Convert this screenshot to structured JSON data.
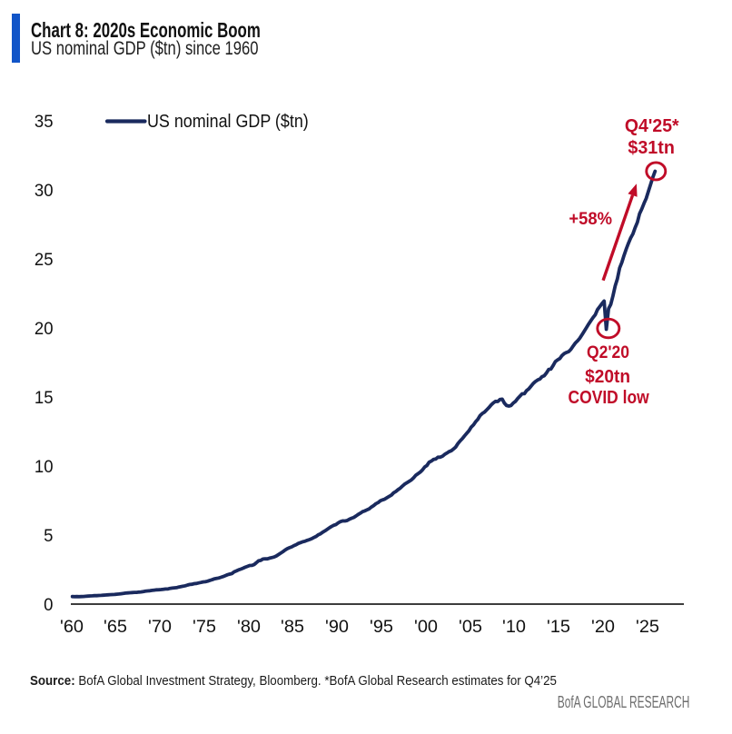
{
  "header": {
    "title": "Chart 8: 2020s Economic Boom",
    "subtitle": "US nominal GDP ($tn) since 1960",
    "accent_color": "#1155c8"
  },
  "legend": {
    "label": "US nominal GDP ($tn)"
  },
  "chart_data": {
    "type": "line",
    "title": "Chart 8: 2020s Economic Boom",
    "subtitle": "US nominal GDP ($tn) since 1960",
    "xlabel": "",
    "ylabel": "",
    "ylim": [
      0,
      35
    ],
    "xlim": [
      1960,
      2029
    ],
    "grid": false,
    "legend_position": "top-left",
    "yticks": [
      0,
      5,
      10,
      15,
      20,
      25,
      30,
      35
    ],
    "xticks": [
      {
        "year": 1960,
        "label": "'60"
      },
      {
        "year": 1965,
        "label": "'65"
      },
      {
        "year": 1970,
        "label": "'70"
      },
      {
        "year": 1975,
        "label": "'75"
      },
      {
        "year": 1980,
        "label": "'80"
      },
      {
        "year": 1985,
        "label": "'85"
      },
      {
        "year": 1990,
        "label": "'90"
      },
      {
        "year": 1995,
        "label": "'95"
      },
      {
        "year": 2000,
        "label": "'00"
      },
      {
        "year": 2005,
        "label": "'05"
      },
      {
        "year": 2010,
        "label": "'10"
      },
      {
        "year": 2015,
        "label": "'15"
      },
      {
        "year": 2020,
        "label": "'20"
      },
      {
        "year": 2025,
        "label": "'25"
      }
    ],
    "series": [
      {
        "name": "US nominal GDP ($tn)",
        "x": [
          1960.125,
          1960.375,
          1960.625,
          1960.875,
          1961.125,
          1961.375,
          1961.625,
          1961.875,
          1962.125,
          1962.375,
          1962.625,
          1962.875,
          1963.125,
          1963.375,
          1963.625,
          1963.875,
          1964.125,
          1964.375,
          1964.625,
          1964.875,
          1965.125,
          1965.375,
          1965.625,
          1965.875,
          1966.125,
          1966.375,
          1966.625,
          1966.875,
          1967.125,
          1967.375,
          1967.625,
          1967.875,
          1968.125,
          1968.375,
          1968.625,
          1968.875,
          1969.125,
          1969.375,
          1969.625,
          1969.875,
          1970.125,
          1970.375,
          1970.625,
          1970.875,
          1971.125,
          1971.375,
          1971.625,
          1971.875,
          1972.125,
          1972.375,
          1972.625,
          1972.875,
          1973.125,
          1973.375,
          1973.625,
          1973.875,
          1974.125,
          1974.375,
          1974.625,
          1974.875,
          1975.125,
          1975.375,
          1975.625,
          1975.875,
          1976.125,
          1976.375,
          1976.625,
          1976.875,
          1977.125,
          1977.375,
          1977.625,
          1977.875,
          1978.125,
          1978.375,
          1978.625,
          1978.875,
          1979.125,
          1979.375,
          1979.625,
          1979.875,
          1980.125,
          1980.375,
          1980.625,
          1980.875,
          1981.125,
          1981.375,
          1981.625,
          1981.875,
          1982.125,
          1982.375,
          1982.625,
          1982.875,
          1983.125,
          1983.375,
          1983.625,
          1983.875,
          1984.125,
          1984.375,
          1984.625,
          1984.875,
          1985.125,
          1985.375,
          1985.625,
          1985.875,
          1986.125,
          1986.375,
          1986.625,
          1986.875,
          1987.125,
          1987.375,
          1987.625,
          1987.875,
          1988.125,
          1988.375,
          1988.625,
          1988.875,
          1989.125,
          1989.375,
          1989.625,
          1989.875,
          1990.125,
          1990.375,
          1990.625,
          1990.875,
          1991.125,
          1991.375,
          1991.625,
          1991.875,
          1992.125,
          1992.375,
          1992.625,
          1992.875,
          1993.125,
          1993.375,
          1993.625,
          1993.875,
          1994.125,
          1994.375,
          1994.625,
          1994.875,
          1995.125,
          1995.375,
          1995.625,
          1995.875,
          1996.125,
          1996.375,
          1996.625,
          1996.875,
          1997.125,
          1997.375,
          1997.625,
          1997.875,
          1998.125,
          1998.375,
          1998.625,
          1998.875,
          1999.125,
          1999.375,
          1999.625,
          1999.875,
          2000.125,
          2000.375,
          2000.625,
          2000.875,
          2001.125,
          2001.375,
          2001.625,
          2001.875,
          2002.125,
          2002.375,
          2002.625,
          2002.875,
          2003.125,
          2003.375,
          2003.625,
          2003.875,
          2004.125,
          2004.375,
          2004.625,
          2004.875,
          2005.125,
          2005.375,
          2005.625,
          2005.875,
          2006.125,
          2006.375,
          2006.625,
          2006.875,
          2007.125,
          2007.375,
          2007.625,
          2007.875,
          2008.125,
          2008.375,
          2008.625,
          2008.875,
          2009.125,
          2009.375,
          2009.625,
          2009.875,
          2010.125,
          2010.375,
          2010.625,
          2010.875,
          2011.125,
          2011.375,
          2011.625,
          2011.875,
          2012.125,
          2012.375,
          2012.625,
          2012.875,
          2013.125,
          2013.375,
          2013.625,
          2013.875,
          2014.125,
          2014.375,
          2014.625,
          2014.875,
          2015.125,
          2015.375,
          2015.625,
          2015.875,
          2016.125,
          2016.375,
          2016.625,
          2016.875,
          2017.125,
          2017.375,
          2017.625,
          2017.875,
          2018.125,
          2018.375,
          2018.625,
          2018.875,
          2019.125,
          2019.375,
          2019.625,
          2019.875,
          2020.125,
          2020.375,
          2020.625,
          2020.875,
          2021.125,
          2021.375,
          2021.625,
          2021.875,
          2022.125,
          2022.375,
          2022.625,
          2022.875,
          2023.125,
          2023.375,
          2023.625,
          2023.875,
          2024.125,
          2024.375,
          2024.625,
          2024.875,
          2025.125,
          2025.375,
          2025.625,
          2025.875
        ],
        "values": [
          0.543,
          0.541,
          0.546,
          0.54,
          0.545,
          0.555,
          0.568,
          0.58,
          0.594,
          0.601,
          0.609,
          0.613,
          0.622,
          0.631,
          0.645,
          0.655,
          0.671,
          0.681,
          0.693,
          0.698,
          0.719,
          0.732,
          0.75,
          0.773,
          0.797,
          0.807,
          0.821,
          0.835,
          0.846,
          0.851,
          0.867,
          0.883,
          0.911,
          0.936,
          0.952,
          0.97,
          0.995,
          1.011,
          1.032,
          1.041,
          1.054,
          1.07,
          1.089,
          1.091,
          1.138,
          1.159,
          1.18,
          1.194,
          1.234,
          1.27,
          1.294,
          1.332,
          1.381,
          1.418,
          1.437,
          1.479,
          1.495,
          1.534,
          1.563,
          1.603,
          1.62,
          1.656,
          1.714,
          1.766,
          1.825,
          1.857,
          1.891,
          1.938,
          1.992,
          2.06,
          2.122,
          2.169,
          2.209,
          2.337,
          2.399,
          2.482,
          2.532,
          2.596,
          2.67,
          2.731,
          2.796,
          2.8,
          2.86,
          2.994,
          3.132,
          3.167,
          3.261,
          3.284,
          3.274,
          3.331,
          3.367,
          3.408,
          3.48,
          3.584,
          3.692,
          3.796,
          3.913,
          4.015,
          4.087,
          4.148,
          4.237,
          4.302,
          4.395,
          4.453,
          4.516,
          4.555,
          4.62,
          4.669,
          4.736,
          4.822,
          4.901,
          5.023,
          5.091,
          5.208,
          5.3,
          5.413,
          5.527,
          5.628,
          5.712,
          5.763,
          5.891,
          5.975,
          6.029,
          6.023,
          6.055,
          6.144,
          6.218,
          6.279,
          6.381,
          6.492,
          6.587,
          6.698,
          6.748,
          6.83,
          6.904,
          7.033,
          7.136,
          7.27,
          7.352,
          7.477,
          7.545,
          7.605,
          7.707,
          7.8,
          7.893,
          8.062,
          8.159,
          8.287,
          8.402,
          8.552,
          8.692,
          8.788,
          8.89,
          8.995,
          9.146,
          9.326,
          9.447,
          9.557,
          9.712,
          9.926,
          10.031,
          10.278,
          10.357,
          10.472,
          10.508,
          10.638,
          10.639,
          10.701,
          10.834,
          10.935,
          11.037,
          11.104,
          11.23,
          11.371,
          11.625,
          11.817,
          11.988,
          12.181,
          12.368,
          12.562,
          12.814,
          12.974,
          13.205,
          13.382,
          13.649,
          13.8,
          13.909,
          14.066,
          14.233,
          14.422,
          14.57,
          14.685,
          14.668,
          14.813,
          14.843,
          14.55,
          14.384,
          14.34,
          14.384,
          14.566,
          14.681,
          14.889,
          15.058,
          15.23,
          15.238,
          15.461,
          15.587,
          15.785,
          15.974,
          16.122,
          16.228,
          16.297,
          16.475,
          16.541,
          16.749,
          17.0,
          17.025,
          17.286,
          17.569,
          17.692,
          17.784,
          17.998,
          18.142,
          18.223,
          18.282,
          18.45,
          18.675,
          18.905,
          19.058,
          19.25,
          19.501,
          19.754,
          20.017,
          20.276,
          20.512,
          20.75,
          20.945,
          21.33,
          21.54,
          21.747,
          21.95,
          19.9,
          21.4,
          21.705,
          22.314,
          23.047,
          23.55,
          24.349,
          24.741,
          25.248,
          25.724,
          26.138,
          26.526,
          26.807,
          27.258,
          27.645,
          28.269,
          28.624,
          29.017,
          29.375,
          29.9,
          30.4,
          30.9,
          31.35
        ]
      }
    ],
    "annotations": {
      "endpoint": {
        "line1": "Q4'25*",
        "line2": "$31tn"
      },
      "growth": {
        "label": "+58%"
      },
      "covid": {
        "line1": "Q2'20",
        "line2": "$20tn",
        "line3": "COVID low",
        "at_x": 2020.375
      }
    },
    "colors": {
      "line": "#1a2a5e",
      "annotation": "#c00c28",
      "axis": "#3d3d3d",
      "accent_bar": "#1155c8"
    }
  },
  "source": {
    "label": "Source:",
    "text": " BofA Global Investment Strategy, Bloomberg. *BofA Global Research estimates for Q4’25"
  },
  "footer": {
    "brand": "BofA GLOBAL RESEARCH"
  }
}
